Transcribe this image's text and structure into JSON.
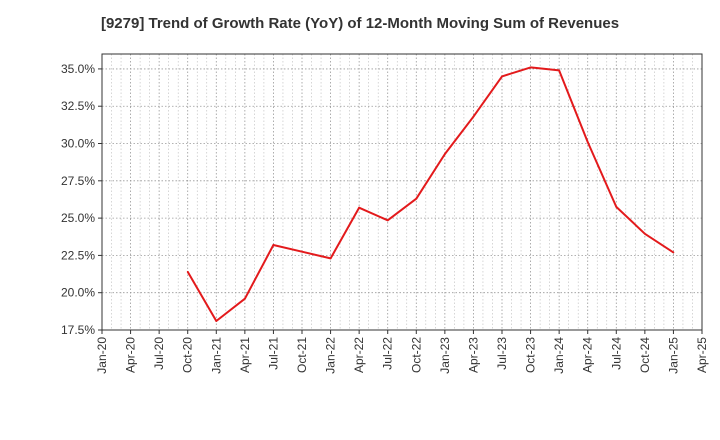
{
  "chart_data": {
    "type": "line",
    "title": "[9279]  Trend of Growth Rate (YoY) of 12-Month Moving Sum of Revenues",
    "xlabel": "",
    "ylabel": "",
    "x_ticks": [
      "Jan-20",
      "Apr-20",
      "Jul-20",
      "Oct-20",
      "Jan-21",
      "Apr-21",
      "Jul-21",
      "Oct-21",
      "Jan-22",
      "Apr-22",
      "Jul-22",
      "Oct-22",
      "Jan-23",
      "Apr-23",
      "Jul-23",
      "Oct-23",
      "Jan-24",
      "Apr-24",
      "Jul-24",
      "Oct-24",
      "Jan-25",
      "Apr-25"
    ],
    "y_ticks": [
      "17.5%",
      "20.0%",
      "22.5%",
      "25.0%",
      "27.5%",
      "30.0%",
      "32.5%",
      "35.0%"
    ],
    "ylim": [
      17.5,
      36.0
    ],
    "grid": true,
    "series": [
      {
        "color": "#e31a1c",
        "points": [
          {
            "x": "Oct-20",
            "y": 21.4
          },
          {
            "x": "Jan-21",
            "y": 18.1
          },
          {
            "x": "Apr-21",
            "y": 19.6
          },
          {
            "x": "Jul-21",
            "y": 23.2
          },
          {
            "x": "Oct-21",
            "y": 22.75
          },
          {
            "x": "Jan-22",
            "y": 22.3
          },
          {
            "x": "Apr-22",
            "y": 25.7
          },
          {
            "x": "Jul-22",
            "y": 24.85
          },
          {
            "x": "Oct-22",
            "y": 26.3
          },
          {
            "x": "Jan-23",
            "y": 29.3
          },
          {
            "x": "Apr-23",
            "y": 31.8
          },
          {
            "x": "Jul-23",
            "y": 34.5
          },
          {
            "x": "Oct-23",
            "y": 35.1
          },
          {
            "x": "Jan-24",
            "y": 34.9
          },
          {
            "x": "Apr-24",
            "y": 30.1
          },
          {
            "x": "Jul-24",
            "y": 25.75
          },
          {
            "x": "Oct-24",
            "y": 23.95
          },
          {
            "x": "Jan-25",
            "y": 22.7
          }
        ]
      }
    ]
  }
}
